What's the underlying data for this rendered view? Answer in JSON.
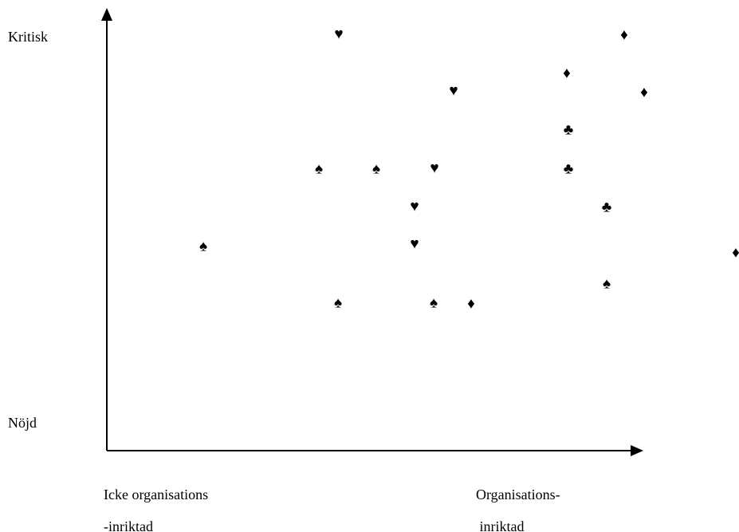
{
  "axes": {
    "y_top": "Kritisk",
    "y_bottom": "Nöjd",
    "x_left": [
      "Icke organisations",
      "-inriktad"
    ],
    "x_right": [
      "Organisations-",
      " inriktad"
    ]
  },
  "symbols": [
    "♥",
    "♦",
    "♦",
    "♥",
    "♦",
    "♣",
    "♠",
    "♠",
    "♥",
    "♣",
    "♥",
    "♣",
    "♠",
    "♥",
    "♦",
    "♠",
    "♠",
    "♠",
    "♦"
  ]
}
